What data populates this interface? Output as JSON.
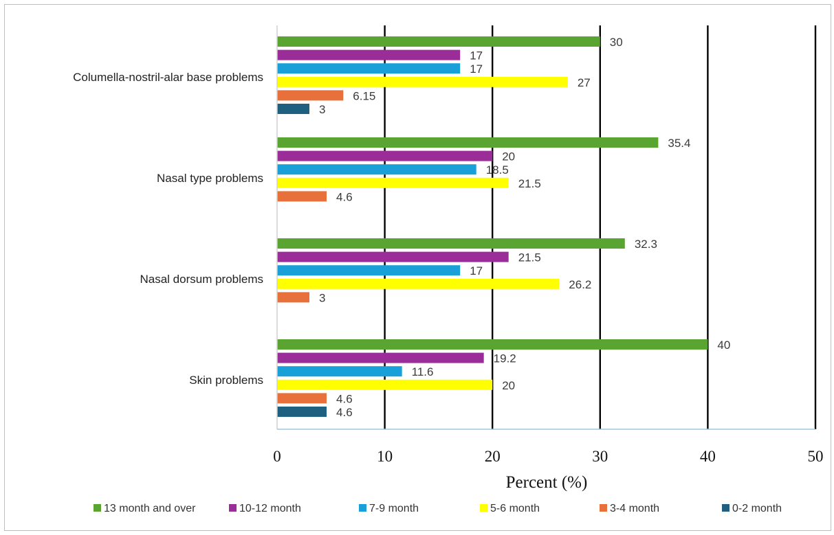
{
  "chart_data": {
    "type": "bar",
    "orientation": "horizontal",
    "title": "",
    "xlabel": "Percent (%)",
    "ylabel": "",
    "xlim": [
      0,
      50
    ],
    "xticks": [
      "0",
      "10",
      "20",
      "30",
      "40",
      "50"
    ],
    "grid": "vertical",
    "legend_position": "bottom",
    "categories": [
      "Columella-nostril-alar base problems",
      "Nasal type problems",
      "Nasal dorsum problems",
      "Skin problems"
    ],
    "series": [
      {
        "name": "13 month and over",
        "color": "#5aa532",
        "values": [
          30,
          35.4,
          32.3,
          40
        ],
        "labels": [
          "30",
          "35.4",
          "32.3",
          "40"
        ]
      },
      {
        "name": "10-12 month",
        "color": "#9b2d98",
        "values": [
          17,
          20,
          21.5,
          19.2
        ],
        "labels": [
          "17",
          "20",
          "21.5",
          "19.2"
        ]
      },
      {
        "name": "7-9 month",
        "color": "#1aa0d8",
        "values": [
          17,
          18.5,
          17,
          11.6
        ],
        "labels": [
          "17",
          "18.5",
          "17",
          "11.6"
        ]
      },
      {
        "name": "5-6 month",
        "color": "#ffff00",
        "values": [
          27,
          21.5,
          26.2,
          20
        ],
        "labels": [
          "27",
          "21.5",
          "26.2",
          "20"
        ]
      },
      {
        "name": "3-4 month",
        "color": "#e8703a",
        "values": [
          6.15,
          4.6,
          3,
          4.6
        ],
        "labels": [
          "6.15",
          "4.6",
          "3",
          "4.6"
        ]
      },
      {
        "name": "0-2 month",
        "color": "#1f5f80",
        "values": [
          3,
          null,
          null,
          4.6
        ],
        "labels": [
          "3",
          null,
          null,
          "4.6"
        ]
      }
    ]
  }
}
